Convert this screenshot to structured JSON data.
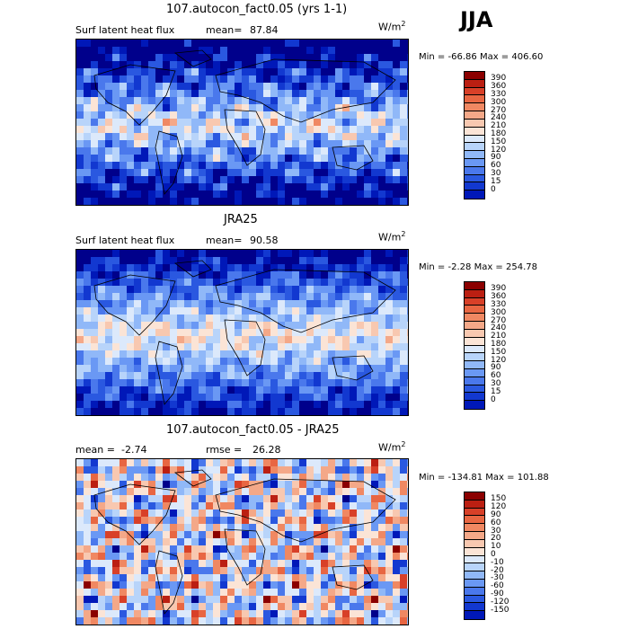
{
  "season": "JJA",
  "colors": {
    "cmap_pos": [
      "#00008b",
      "#0018b8",
      "#1238d0",
      "#2a58e0",
      "#4a78ec",
      "#6a98f4",
      "#90b8f8",
      "#b8d4fa",
      "#dce9fb",
      "#fbe4d6",
      "#f8c8b0",
      "#f4a888",
      "#f08862",
      "#e86642",
      "#d84028",
      "#bb1f12",
      "#8b0000"
    ],
    "cmap_diff": [
      "#00008b",
      "#0018b8",
      "#1238d0",
      "#2a58e0",
      "#4a78ec",
      "#6a98f4",
      "#90b8f8",
      "#b8d4fa",
      "#dce9fb",
      "#fbe4d6",
      "#f8c8b0",
      "#f4a888",
      "#f08862",
      "#e86642",
      "#d84028",
      "#bb1f12",
      "#8b0000"
    ]
  },
  "panels": [
    {
      "title": "107.autocon_fact0.05 (yrs 1-1)",
      "left_label": "Surf latent heat flux",
      "stat_label": "mean=",
      "stat_value": "87.84",
      "units_base": "W/m",
      "units_exp": "2",
      "min_label": "Min =",
      "min_value": "-66.86",
      "max_label": "Max =",
      "max_value": "406.60",
      "levels": [
        "390",
        "360",
        "330",
        "300",
        "270",
        "240",
        "210",
        "180",
        "150",
        "120",
        "90",
        "60",
        "30",
        "15",
        "0"
      ],
      "kind": "model"
    },
    {
      "title": "JRA25",
      "left_label": "Surf latent heat flux",
      "stat_label": "mean=",
      "stat_value": "90.58",
      "units_base": "W/m",
      "units_exp": "2",
      "min_label": "Min =",
      "min_value": "-2.28",
      "max_label": "Max =",
      "max_value": "254.78",
      "levels": [
        "390",
        "360",
        "330",
        "300",
        "270",
        "240",
        "210",
        "180",
        "150",
        "120",
        "90",
        "60",
        "30",
        "15",
        "0"
      ],
      "kind": "obs"
    },
    {
      "title": "107.autocon_fact0.05 - JRA25",
      "left_label": "mean =",
      "left_value": "-2.74",
      "stat_label": "rmse =",
      "stat_value": "26.28",
      "units_base": "W/m",
      "units_exp": "2",
      "min_label": "Min =",
      "min_value": "-134.81",
      "max_label": "Max =",
      "max_value": "101.88",
      "levels": [
        "150",
        "120",
        "90",
        "60",
        "30",
        "20",
        "10",
        "0",
        "-10",
        "-20",
        "-30",
        "-60",
        "-90",
        "-120",
        "-150"
      ],
      "kind": "diff"
    }
  ]
}
